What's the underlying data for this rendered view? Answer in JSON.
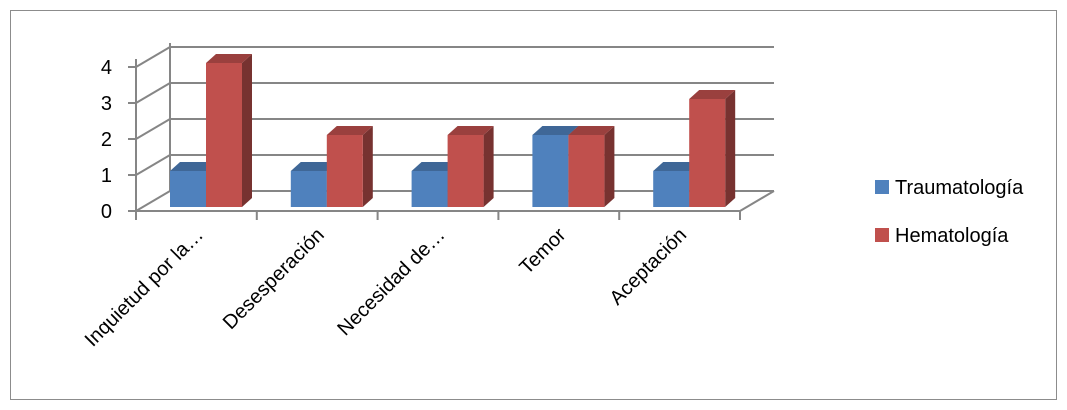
{
  "chart_data": {
    "type": "bar",
    "style": "3d-clustered-column",
    "title": "",
    "xlabel": "",
    "ylabel": "",
    "categories": [
      "Inquietud por la…",
      "Desesperación",
      "Necesidad de…",
      "Temor",
      "Aceptación"
    ],
    "series": [
      {
        "name": "Traumatología",
        "values": [
          1,
          1,
          1,
          2,
          1
        ],
        "color": "#4f81bd"
      },
      {
        "name": "Hematología",
        "values": [
          4,
          2,
          2,
          2,
          3
        ],
        "color": "#c0504d"
      }
    ],
    "ylim": [
      0,
      4
    ],
    "yticks": [
      "0",
      "1",
      "2",
      "3",
      "4"
    ],
    "grid": true,
    "legend_position": "right"
  }
}
